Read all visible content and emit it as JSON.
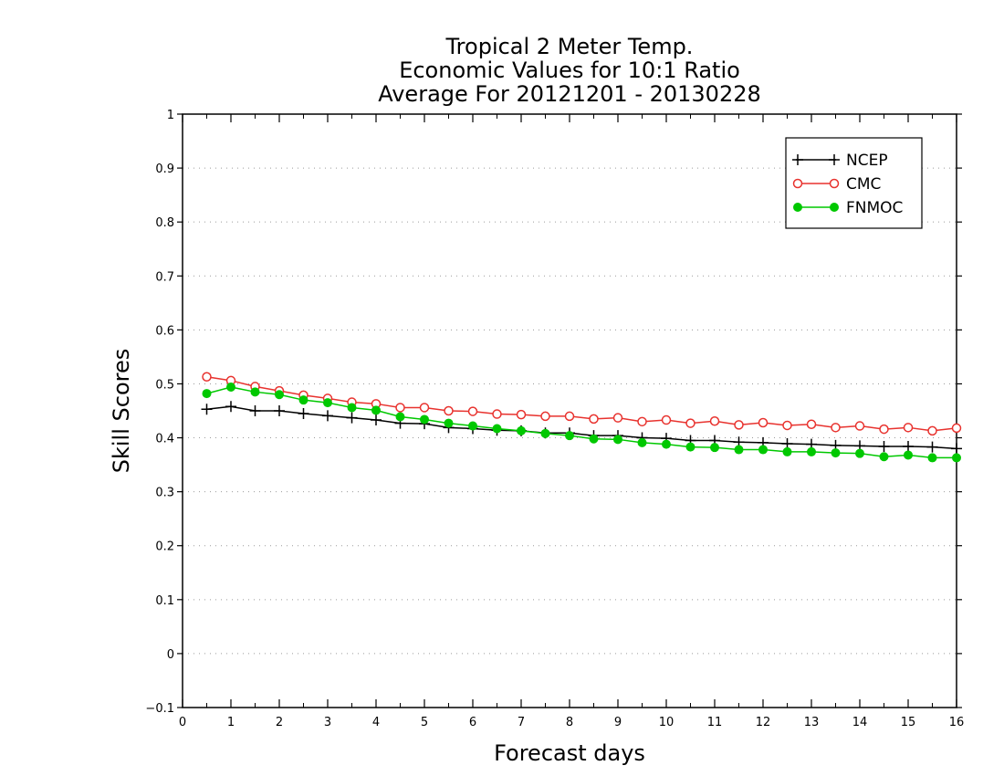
{
  "chart_data": {
    "type": "line",
    "title": [
      "Tropical 2 Meter Temp.",
      "Economic Values for 10:1 Ratio",
      "Average For 20121201 - 20130228"
    ],
    "xlabel": "Forecast days",
    "ylabel": "Skill Scores",
    "xlim": [
      0,
      16
    ],
    "ylim": [
      -0.1,
      1
    ],
    "x_ticks": [
      "0",
      "1",
      "2",
      "3",
      "4",
      "5",
      "6",
      "7",
      "8",
      "9",
      "10",
      "11",
      "12",
      "13",
      "14",
      "15",
      "16"
    ],
    "y_ticks": [
      "-0.1",
      "0",
      "0.1",
      "0.2",
      "0.3",
      "0.4",
      "0.5",
      "0.6",
      "0.7",
      "0.8",
      "0.9",
      "1"
    ],
    "grid": "horizontal-dotted",
    "legend_position": "top-right",
    "x": [
      0.5,
      1,
      1.5,
      2,
      2.5,
      3,
      3.5,
      4,
      4.5,
      5,
      5.5,
      6,
      6.5,
      7,
      7.5,
      8,
      8.5,
      9,
      9.5,
      10,
      10.5,
      11,
      11.5,
      12,
      12.5,
      13,
      13.5,
      14,
      14.5,
      15,
      15.5,
      16
    ],
    "series": [
      {
        "name": "NCEP",
        "color": "#000000",
        "marker": "plus",
        "values": [
          0.453,
          0.458,
          0.45,
          0.45,
          0.445,
          0.441,
          0.437,
          0.433,
          0.427,
          0.426,
          0.419,
          0.417,
          0.414,
          0.413,
          0.409,
          0.409,
          0.404,
          0.404,
          0.4,
          0.399,
          0.395,
          0.395,
          0.392,
          0.391,
          0.389,
          0.388,
          0.386,
          0.385,
          0.384,
          0.384,
          0.383,
          0.38
        ]
      },
      {
        "name": "CMC",
        "color": "#e8322e",
        "marker": "open-circle",
        "values": [
          0.513,
          0.506,
          0.495,
          0.487,
          0.479,
          0.473,
          0.466,
          0.463,
          0.456,
          0.456,
          0.45,
          0.449,
          0.444,
          0.443,
          0.44,
          0.44,
          0.435,
          0.437,
          0.43,
          0.433,
          0.427,
          0.431,
          0.424,
          0.428,
          0.423,
          0.425,
          0.419,
          0.422,
          0.416,
          0.419,
          0.413,
          0.418
        ]
      },
      {
        "name": "FNMOC",
        "color": "#00c800",
        "marker": "filled-circle",
        "values": [
          0.482,
          0.494,
          0.485,
          0.48,
          0.47,
          0.465,
          0.456,
          0.451,
          0.439,
          0.434,
          0.427,
          0.422,
          0.417,
          0.413,
          0.408,
          0.404,
          0.398,
          0.397,
          0.391,
          0.388,
          0.383,
          0.382,
          0.378,
          0.378,
          0.374,
          0.374,
          0.372,
          0.371,
          0.365,
          0.368,
          0.363,
          0.363
        ]
      }
    ]
  }
}
